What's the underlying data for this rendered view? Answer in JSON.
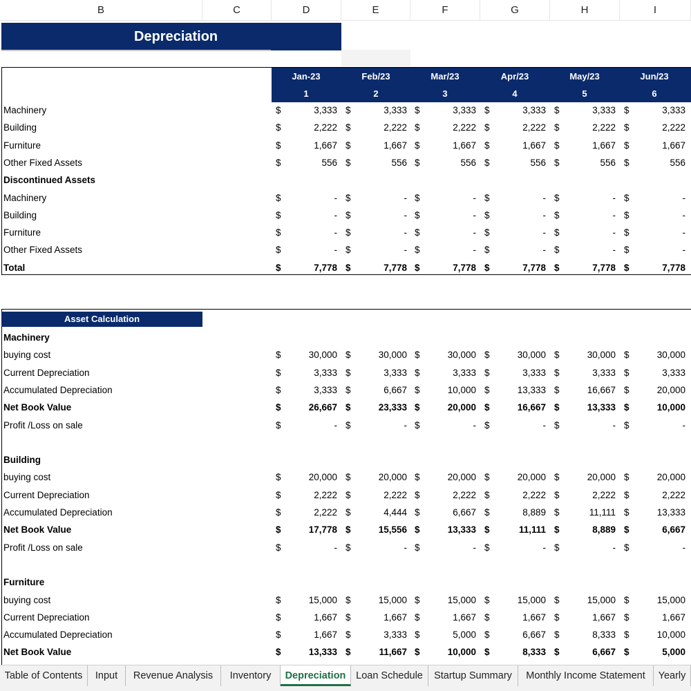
{
  "columns": [
    "B",
    "C",
    "D",
    "E",
    "F",
    "G",
    "H",
    "I"
  ],
  "title": "Depreciation",
  "months": [
    {
      "label": "Jan-23",
      "num": "1"
    },
    {
      "label": "Feb/23",
      "num": "2"
    },
    {
      "label": "Mar/23",
      "num": "3"
    },
    {
      "label": "Apr/23",
      "num": "4"
    },
    {
      "label": "May/23",
      "num": "5"
    },
    {
      "label": "Jun/23",
      "num": "6"
    }
  ],
  "currency": "$",
  "summary_rows": [
    {
      "label": "Machinery",
      "bold": false,
      "values": [
        "3,333",
        "3,333",
        "3,333",
        "3,333",
        "3,333",
        "3,333"
      ]
    },
    {
      "label": "Building",
      "bold": false,
      "values": [
        "2,222",
        "2,222",
        "2,222",
        "2,222",
        "2,222",
        "2,222"
      ]
    },
    {
      "label": "Furniture",
      "bold": false,
      "values": [
        "1,667",
        "1,667",
        "1,667",
        "1,667",
        "1,667",
        "1,667"
      ]
    },
    {
      "label": "Other Fixed Assets",
      "bold": false,
      "values": [
        "556",
        "556",
        "556",
        "556",
        "556",
        "556"
      ]
    },
    {
      "label": "Discontinued Assets",
      "bold": true,
      "values": null
    },
    {
      "label": "Machinery",
      "bold": false,
      "values": [
        "-",
        "-",
        "-",
        "-",
        "-",
        "-"
      ]
    },
    {
      "label": "Building",
      "bold": false,
      "values": [
        "-",
        "-",
        "-",
        "-",
        "-",
        "-"
      ]
    },
    {
      "label": "Furniture",
      "bold": false,
      "values": [
        "-",
        "-",
        "-",
        "-",
        "-",
        "-"
      ]
    },
    {
      "label": "Other Fixed Assets",
      "bold": false,
      "values": [
        "-",
        "-",
        "-",
        "-",
        "-",
        "-"
      ]
    },
    {
      "label": "Total",
      "bold": true,
      "values": [
        "7,778",
        "7,778",
        "7,778",
        "7,778",
        "7,778",
        "7,778"
      ]
    }
  ],
  "asset_header": "Asset Calculation",
  "asset_rows": [
    {
      "label": "Machinery",
      "bold": true,
      "values": null
    },
    {
      "label": "buying cost",
      "bold": false,
      "values": [
        "30,000",
        "30,000",
        "30,000",
        "30,000",
        "30,000",
        "30,000"
      ]
    },
    {
      "label": "Current Depreciation",
      "bold": false,
      "values": [
        "3,333",
        "3,333",
        "3,333",
        "3,333",
        "3,333",
        "3,333"
      ]
    },
    {
      "label": "Accumulated Depreciation",
      "bold": false,
      "values": [
        "3,333",
        "6,667",
        "10,000",
        "13,333",
        "16,667",
        "20,000"
      ]
    },
    {
      "label": "Net Book Value",
      "bold": true,
      "values": [
        "26,667",
        "23,333",
        "20,000",
        "16,667",
        "13,333",
        "10,000"
      ]
    },
    {
      "label": "Profit /Loss on sale",
      "bold": false,
      "values": [
        "-",
        "-",
        "-",
        "-",
        "-",
        "-"
      ]
    },
    {
      "label": "",
      "bold": false,
      "values": null
    },
    {
      "label": "Building",
      "bold": true,
      "values": null
    },
    {
      "label": "buying cost",
      "bold": false,
      "values": [
        "20,000",
        "20,000",
        "20,000",
        "20,000",
        "20,000",
        "20,000"
      ]
    },
    {
      "label": "Current Depreciation",
      "bold": false,
      "values": [
        "2,222",
        "2,222",
        "2,222",
        "2,222",
        "2,222",
        "2,222"
      ]
    },
    {
      "label": "Accumulated Depreciation",
      "bold": false,
      "values": [
        "2,222",
        "4,444",
        "6,667",
        "8,889",
        "11,111",
        "13,333"
      ]
    },
    {
      "label": "Net Book Value",
      "bold": true,
      "values": [
        "17,778",
        "15,556",
        "13,333",
        "11,111",
        "8,889",
        "6,667"
      ]
    },
    {
      "label": "Profit /Loss on sale",
      "bold": false,
      "values": [
        "-",
        "-",
        "-",
        "-",
        "-",
        "-"
      ]
    },
    {
      "label": "",
      "bold": false,
      "values": null
    },
    {
      "label": "Furniture",
      "bold": true,
      "values": null
    },
    {
      "label": "buying cost",
      "bold": false,
      "values": [
        "15,000",
        "15,000",
        "15,000",
        "15,000",
        "15,000",
        "15,000"
      ]
    },
    {
      "label": "Current Depreciation",
      "bold": false,
      "values": [
        "1,667",
        "1,667",
        "1,667",
        "1,667",
        "1,667",
        "1,667"
      ]
    },
    {
      "label": "Accumulated Depreciation",
      "bold": false,
      "values": [
        "1,667",
        "3,333",
        "5,000",
        "6,667",
        "8,333",
        "10,000"
      ]
    },
    {
      "label": "Net Book Value",
      "bold": true,
      "values": [
        "13,333",
        "11,667",
        "10,000",
        "8,333",
        "6,667",
        "5,000"
      ]
    }
  ],
  "sheet_tabs": [
    {
      "label": "Table of Contents",
      "active": false
    },
    {
      "label": "Input",
      "active": false
    },
    {
      "label": "Revenue Analysis",
      "active": false
    },
    {
      "label": "Inventory",
      "active": false
    },
    {
      "label": "Depreciation",
      "active": true
    },
    {
      "label": "Loan Schedule",
      "active": false
    },
    {
      "label": "Startup Summary",
      "active": false
    },
    {
      "label": "Monthly Income Statement",
      "active": false
    },
    {
      "label": "Yearly",
      "active": false
    }
  ],
  "colors": {
    "header_navy": "#0a2a6b",
    "active_tab": "#1e7145"
  }
}
